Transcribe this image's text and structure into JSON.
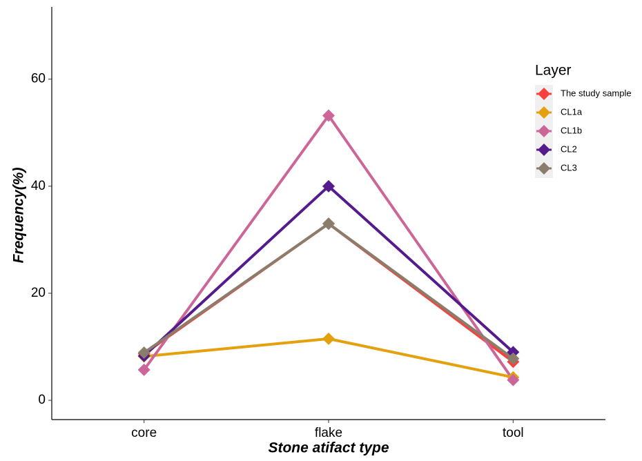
{
  "chart_data": {
    "type": "line",
    "x_label": "Stone atifact type",
    "y_label": "Frequency(%)",
    "categories": [
      "core",
      "flake",
      "tool"
    ],
    "series": [
      {
        "name": "The study sample",
        "color": "#f8413d",
        "values": [
          8.7,
          33.0,
          7.2
        ]
      },
      {
        "name": "CL1a",
        "color": "#e5a00d",
        "values": [
          8.2,
          11.5,
          4.3
        ]
      },
      {
        "name": "CL1b",
        "color": "#cc6699",
        "values": [
          5.7,
          53.2,
          3.8
        ]
      },
      {
        "name": "CL2",
        "color": "#551a8b",
        "values": [
          8.3,
          40.0,
          9.0
        ]
      },
      {
        "name": "CL3",
        "color": "#8b7d6b",
        "values": [
          8.9,
          33.0,
          7.8
        ]
      }
    ],
    "ylim": [
      -3.6,
      73.5
    ],
    "yticks": [
      0,
      20,
      40,
      60
    ],
    "grid": false,
    "legend_title": "Layer",
    "legend_position": "right"
  }
}
